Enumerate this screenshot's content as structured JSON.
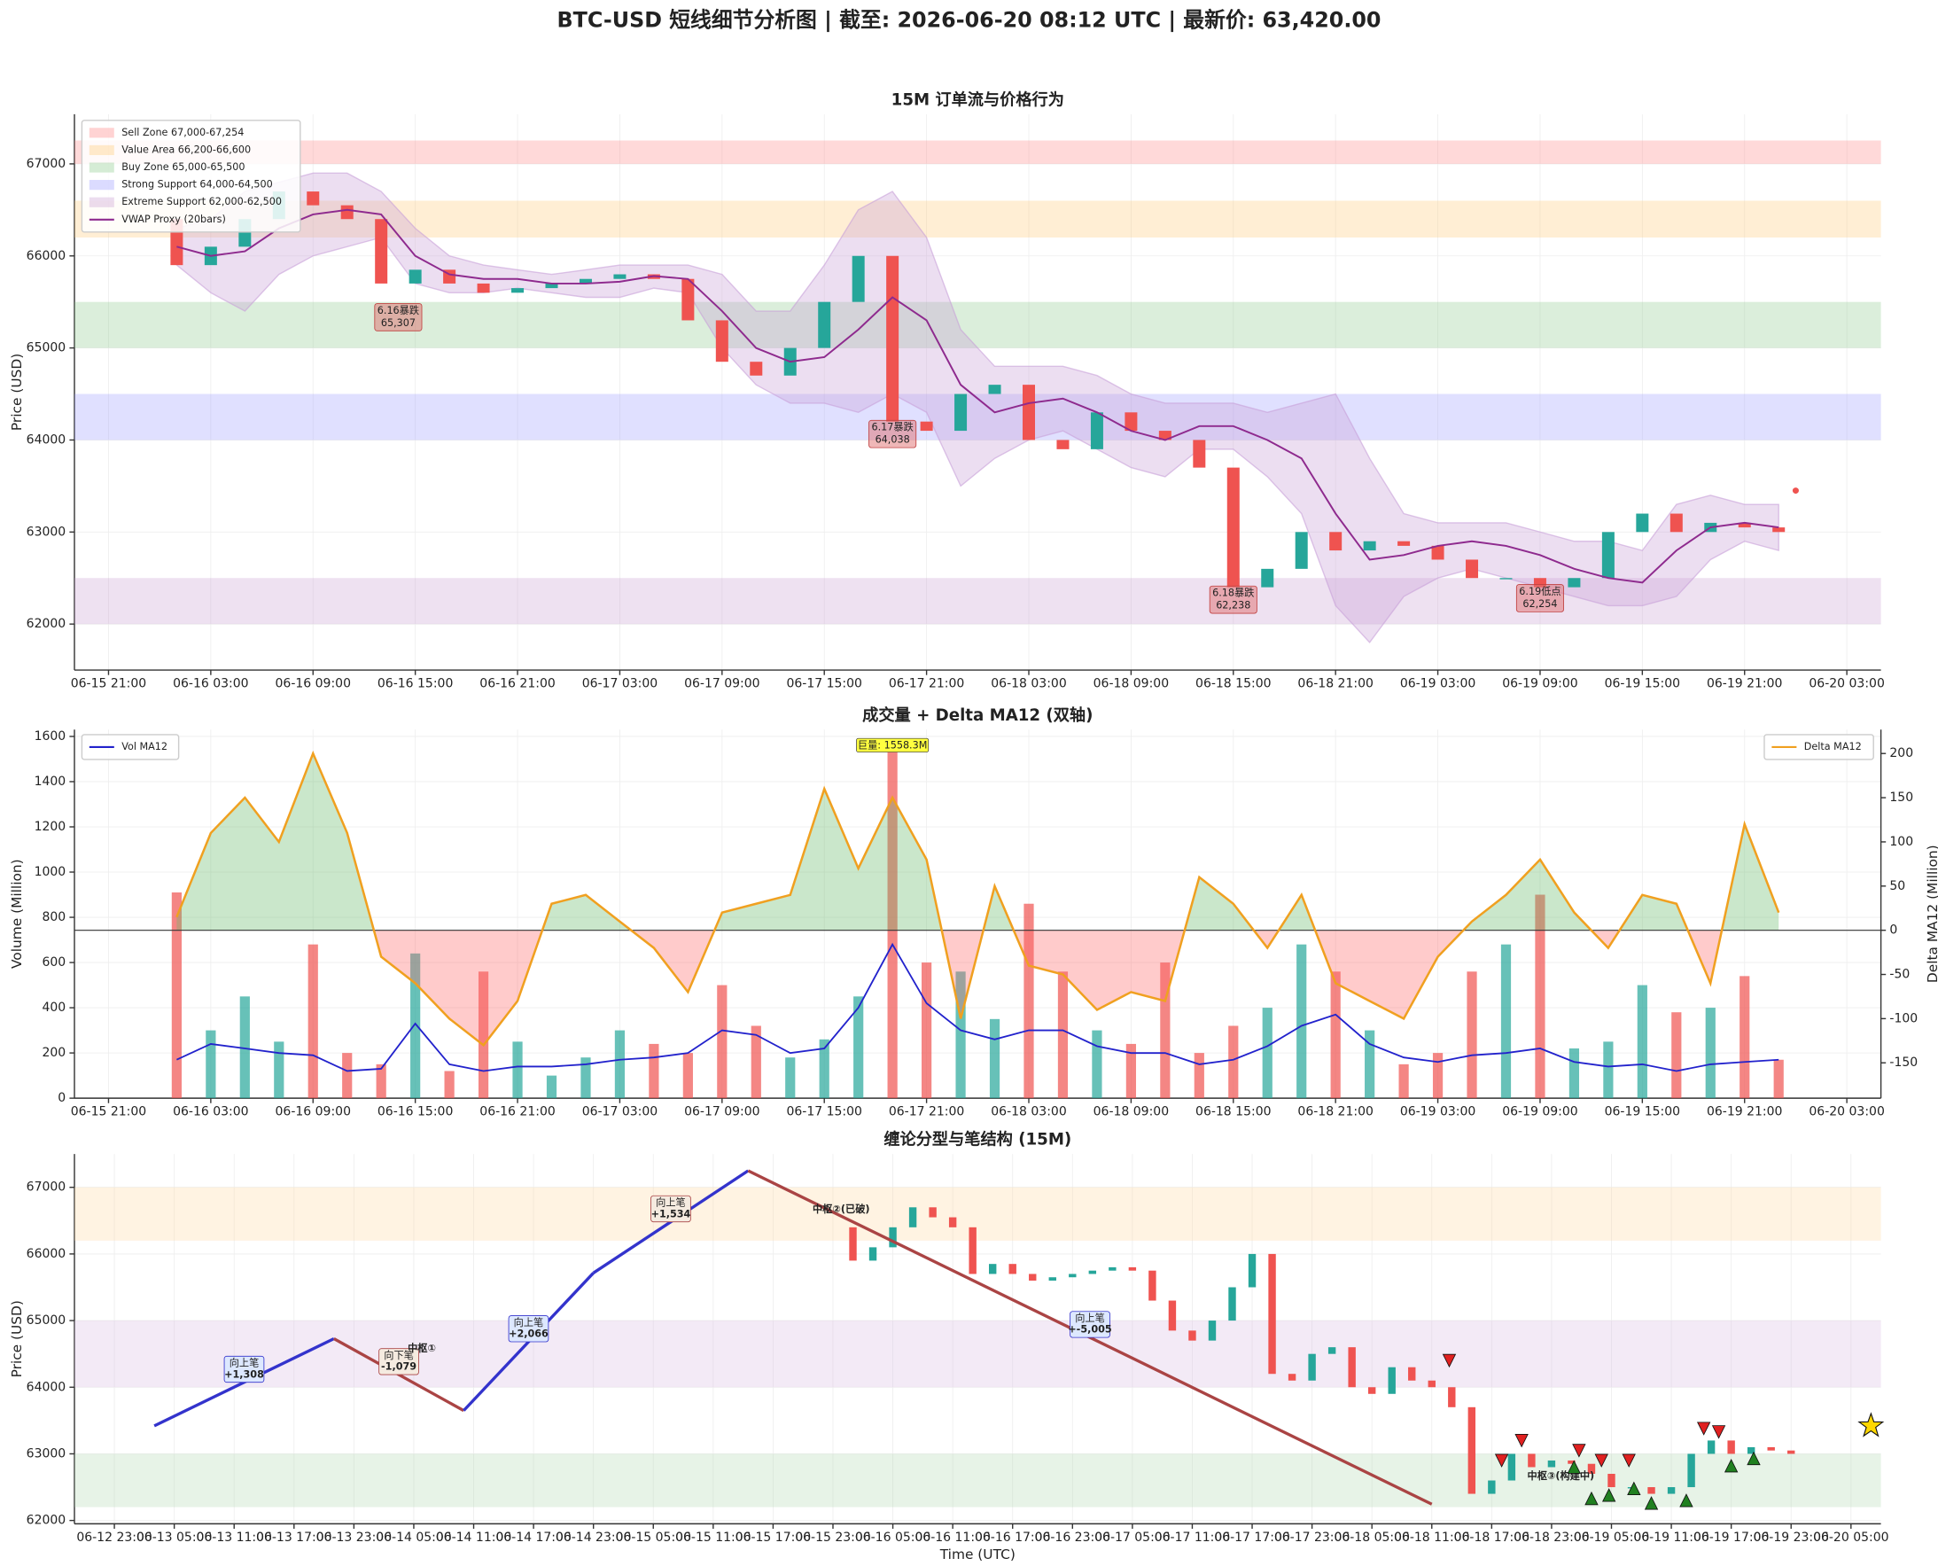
{
  "title": "BTC-USD 短线细节分析图 | 截至: 2026-06-20 08:12 UTC | 最新价: 63,420.00",
  "chart_data": [
    {
      "type": "candlestick",
      "title": "15M 订单流与价格行为",
      "ylabel": "Price (USD)",
      "x": [
        "06-16 01:00",
        "06-16 03:00",
        "06-16 05:00",
        "06-16 07:00",
        "06-16 09:00",
        "06-16 11:00",
        "06-16 13:00",
        "06-16 15:00",
        "06-16 17:00",
        "06-16 19:00",
        "06-16 21:00",
        "06-16 23:00",
        "06-17 01:00",
        "06-17 03:00",
        "06-17 05:00",
        "06-17 07:00",
        "06-17 09:00",
        "06-17 11:00",
        "06-17 13:00",
        "06-17 15:00",
        "06-17 17:00",
        "06-17 19:00",
        "06-17 21:00",
        "06-17 23:00",
        "06-18 01:00",
        "06-18 03:00",
        "06-18 05:00",
        "06-18 07:00",
        "06-18 09:00",
        "06-18 11:00",
        "06-18 13:00",
        "06-18 15:00",
        "06-18 17:00",
        "06-18 19:00",
        "06-18 21:00",
        "06-18 23:00",
        "06-19 01:00",
        "06-19 03:00",
        "06-19 05:00",
        "06-19 07:00",
        "06-19 09:00",
        "06-19 11:00",
        "06-19 13:00",
        "06-19 15:00",
        "06-19 17:00",
        "06-19 19:00",
        "06-19 21:00",
        "06-19 23:00"
      ],
      "open": [
        66400,
        65900,
        66100,
        66400,
        66700,
        66550,
        66400,
        65700,
        65850,
        65700,
        65600,
        65650,
        65700,
        65750,
        65800,
        65750,
        65300,
        64850,
        64700,
        65000,
        65500,
        66000,
        64200,
        64100,
        64500,
        64600,
        64000,
        63900,
        64300,
        64100,
        64000,
        63700,
        62400,
        62600,
        63000,
        62800,
        62900,
        62850,
        62700,
        62500,
        62500,
        62400,
        62500,
        63000,
        63200,
        63000,
        63100,
        63050
      ],
      "close": [
        65900,
        66100,
        66400,
        66700,
        66550,
        66400,
        65700,
        65850,
        65700,
        65600,
        65650,
        65700,
        65750,
        65800,
        65750,
        65300,
        64850,
        64700,
        65000,
        65500,
        66000,
        64200,
        64100,
        64500,
        64600,
        64000,
        63900,
        64300,
        64100,
        64000,
        63700,
        62400,
        62600,
        63000,
        62800,
        62900,
        62850,
        62700,
        62500,
        62500,
        62400,
        62500,
        63000,
        63200,
        63000,
        63100,
        63050,
        63000
      ],
      "up_color": "#26a69a",
      "down_color": "#ef5350",
      "vwap": {
        "name": "VWAP Proxy (20bars)",
        "color": "#8e2a8e",
        "band_color": "#c8a0d8",
        "values": [
          66100,
          66000,
          66050,
          66300,
          66450,
          66500,
          66450,
          66000,
          65800,
          65750,
          65750,
          65700,
          65700,
          65720,
          65780,
          65750,
          65400,
          65000,
          64850,
          64900,
          65200,
          65550,
          65300,
          64600,
          64300,
          64400,
          64450,
          64300,
          64100,
          64000,
          64150,
          64150,
          64000,
          63800,
          63200,
          62700,
          62750,
          62850,
          62900,
          62850,
          62750,
          62600,
          62500,
          62450,
          62800,
          63050,
          63100,
          63050
        ],
        "band_upper": [
          66300,
          66400,
          66700,
          66800,
          66900,
          66900,
          66700,
          66300,
          66000,
          65900,
          65850,
          65800,
          65850,
          65900,
          65900,
          65900,
          65800,
          65400,
          65400,
          65900,
          66500,
          66700,
          66200,
          65200,
          64800,
          64800,
          64800,
          64700,
          64500,
          64400,
          64400,
          64400,
          64300,
          64400,
          64500,
          63800,
          63200,
          63100,
          63100,
          63100,
          63000,
          62900,
          62900,
          62800,
          63300,
          63400,
          63300,
          63300
        ],
        "band_lower": [
          65900,
          65600,
          65400,
          65800,
          66000,
          66100,
          66200,
          65700,
          65600,
          65600,
          65650,
          65600,
          65550,
          65550,
          65650,
          65600,
          65000,
          64600,
          64400,
          64400,
          64300,
          64500,
          64300,
          63500,
          63800,
          64000,
          64100,
          63900,
          63700,
          63600,
          63900,
          63900,
          63600,
          63200,
          62200,
          61800,
          62300,
          62500,
          62600,
          62500,
          62400,
          62300,
          62200,
          62200,
          62300,
          62700,
          62900,
          62800
        ]
      },
      "zones": [
        {
          "name": "Sell Zone 67,000-67,254",
          "ymin": 67000,
          "ymax": 67254,
          "color": "#ff8080"
        },
        {
          "name": "Value Area 66,200-66,600",
          "ymin": 66200,
          "ymax": 66600,
          "color": "#ffc870"
        },
        {
          "name": "Buy Zone 65,000-65,500",
          "ymin": 65000,
          "ymax": 65500,
          "color": "#88c888"
        },
        {
          "name": "Strong Support 64,000-64,500",
          "ymin": 64000,
          "ymax": 64500,
          "color": "#9999ff"
        },
        {
          "name": "Extreme Support 62,000-62,500",
          "ymin": 62000,
          "ymax": 62500,
          "color": "#c89ad0"
        }
      ],
      "annotations": [
        {
          "x": "06-16 14:00",
          "value": 65307,
          "label": "6.16暴跌",
          "value_label": "65,307"
        },
        {
          "x": "06-17 19:00",
          "value": 64038,
          "label": "6.17暴跌",
          "value_label": "64,038"
        },
        {
          "x": "06-18 15:00",
          "value": 62238,
          "label": "6.18暴跌",
          "value_label": "62,238"
        },
        {
          "x": "06-19 09:00",
          "value": 62254,
          "label": "6.19低点",
          "value_label": "62,254"
        }
      ],
      "last_point": {
        "x": "06-20 00:00",
        "value": 63450,
        "color": "#ef5350"
      },
      "xlim": [
        "06-15 19:00",
        "06-20 05:00"
      ],
      "xticks": [
        "06-15 21:00",
        "06-16 03:00",
        "06-16 09:00",
        "06-16 15:00",
        "06-16 21:00",
        "06-17 03:00",
        "06-17 09:00",
        "06-17 15:00",
        "06-17 21:00",
        "06-18 03:00",
        "06-18 09:00",
        "06-18 15:00",
        "06-18 21:00",
        "06-19 03:00",
        "06-19 09:00",
        "06-19 15:00",
        "06-19 21:00",
        "06-20 03:00"
      ],
      "ylim": [
        61500,
        67540
      ],
      "yticks": [
        62000,
        63000,
        64000,
        65000,
        66000,
        67000
      ],
      "grid": true,
      "legend": "upper left"
    },
    {
      "type": "bar",
      "title": "成交量 + Delta MA12 (双轴)",
      "ylabel": "Volume (Million)",
      "y2label": "Delta MA12 (Million)",
      "values": [
        910,
        300,
        450,
        250,
        680,
        200,
        150,
        640,
        120,
        560,
        250,
        100,
        180,
        300,
        240,
        200,
        500,
        320,
        180,
        260,
        450,
        1558.3,
        600,
        560,
        350,
        860,
        560,
        300,
        240,
        600,
        200,
        320,
        400,
        680,
        560,
        300,
        150,
        200,
        560,
        680,
        900,
        220,
        250,
        500,
        380,
        400,
        540,
        170
      ],
      "series": [
        {
          "name": "Vol MA12",
          "color": "#2222cc",
          "values": [
            170,
            240,
            220,
            200,
            190,
            120,
            130,
            330,
            150,
            120,
            140,
            140,
            150,
            170,
            180,
            200,
            300,
            280,
            200,
            220,
            400,
            680,
            420,
            300,
            260,
            300,
            300,
            230,
            200,
            200,
            150,
            170,
            230,
            320,
            370,
            240,
            180,
            160,
            190,
            200,
            220,
            160,
            140,
            150,
            120,
            150,
            160,
            170
          ]
        },
        {
          "name": "Delta MA12",
          "color": "#f0a020",
          "axis": "y2",
          "pos_color": "#66bb6a",
          "neg_color": "#ff6b6b",
          "values": [
            15,
            110,
            150,
            100,
            200,
            110,
            -30,
            -60,
            -100,
            -130,
            -80,
            30,
            40,
            10,
            -20,
            -70,
            20,
            30,
            40,
            160,
            70,
            150,
            80,
            -100,
            50,
            -40,
            -50,
            -90,
            -70,
            -80,
            60,
            30,
            -20,
            40,
            -60,
            -80,
            -100,
            -30,
            10,
            40,
            80,
            20,
            -20,
            40,
            30,
            -60,
            120,
            20
          ]
        }
      ],
      "annotation": {
        "x": "06-17 19:00",
        "value": 1558.3,
        "label": "巨量: 1558.3M",
        "color": "#ffff40"
      },
      "xlim": [
        "06-15 19:00",
        "06-20 05:00"
      ],
      "xticks": [
        "06-15 21:00",
        "06-16 03:00",
        "06-16 09:00",
        "06-16 15:00",
        "06-16 21:00",
        "06-17 03:00",
        "06-17 09:00",
        "06-17 15:00",
        "06-17 21:00",
        "06-18 03:00",
        "06-18 09:00",
        "06-18 15:00",
        "06-18 21:00",
        "06-19 03:00",
        "06-19 09:00",
        "06-19 15:00",
        "06-19 21:00",
        "06-20 03:00"
      ],
      "ylim": [
        0,
        1630
      ],
      "yticks": [
        0,
        200,
        400,
        600,
        800,
        1000,
        1200,
        1400,
        1600
      ],
      "y2lim": [
        -190,
        227
      ],
      "y2ticks": [
        -150,
        -100,
        -50,
        0,
        50,
        100,
        150,
        200
      ],
      "grid": true,
      "legend": "upper left",
      "legend2": "upper right"
    },
    {
      "type": "chan",
      "title": "缠论分型与笔结构 (15M)",
      "ylabel": "Price (USD)",
      "xlabel": "Time (UTC)",
      "strokes": {
        "x": [
          "06-13 03:00",
          "06-13 21:00",
          "06-14 10:00",
          "06-14 23:00",
          "06-15 14:30",
          "06-18 11:00"
        ],
        "values": [
          63420,
          64728,
          63649,
          65715,
          67249,
          62244
        ],
        "up_color": "#3333cc",
        "down_color": "#aa4444",
        "labels": [
          {
            "text": "向上笔",
            "value_label": "+1,308"
          },
          {
            "text": "向下笔",
            "value_label": "-1,079"
          },
          {
            "text": "向上笔",
            "value_label": "+2,066"
          },
          {
            "text": "向上笔",
            "value_label": "+1,534"
          },
          {
            "text": "向上笔",
            "value_label": "+-5,005"
          }
        ]
      },
      "zones": [
        {
          "name": "中枢①",
          "ymin": 64000,
          "ymax": 65000,
          "color": "#d8b8e0",
          "label_color": "#800080"
        },
        {
          "name": "中枢②(已破)",
          "ymin": 66200,
          "ymax": 67000,
          "color": "#ffd8a0",
          "label_color": "#f0a020"
        },
        {
          "name": "中枢③(构建中)",
          "ymin": 62200,
          "ymax": 63000,
          "color": "#b0d8b0",
          "label_color": "#208020"
        }
      ],
      "tops": {
        "color": "#e02020",
        "x": [
          "06-18 12:45",
          "06-18 18:00",
          "06-18 20:00",
          "06-19 01:45",
          "06-19 04:00",
          "06-19 06:45",
          "06-19 14:15",
          "06-19 15:45"
        ],
        "values": [
          64400,
          62900,
          63200,
          63050,
          62900,
          62900,
          63380,
          63330
        ]
      },
      "bottoms": {
        "color": "#208020",
        "x": [
          "06-19 01:15",
          "06-19 03:00",
          "06-19 04:45",
          "06-19 07:15",
          "06-19 09:00",
          "06-19 12:30",
          "06-19 17:00",
          "06-19 19:15"
        ],
        "values": [
          62800,
          62330,
          62380,
          62480,
          62260,
          62300,
          62820,
          62930
        ]
      },
      "current": {
        "x": "06-20 07:00",
        "value": 63420,
        "color": "#ffd700"
      },
      "xlim": [
        "06-12 19:00",
        "06-20 08:00"
      ],
      "xticks": [
        "06-12 23:00",
        "06-13 05:00",
        "06-13 11:00",
        "06-13 17:00",
        "06-13 23:00",
        "06-14 05:00",
        "06-14 11:00",
        "06-14 17:00",
        "06-14 23:00",
        "06-15 05:00",
        "06-15 11:00",
        "06-15 17:00",
        "06-15 23:00",
        "06-16 05:00",
        "06-16 11:00",
        "06-16 17:00",
        "06-16 23:00",
        "06-17 05:00",
        "06-17 11:00",
        "06-17 17:00",
        "06-17 23:00",
        "06-18 05:00",
        "06-18 11:00",
        "06-18 17:00",
        "06-18 23:00",
        "06-19 05:00",
        "06-19 11:00",
        "06-19 17:00",
        "06-19 23:00",
        "06-20 05:00"
      ],
      "ylim": [
        61950,
        67500
      ],
      "yticks": [
        62000,
        63000,
        64000,
        65000,
        66000,
        67000
      ],
      "grid": true
    }
  ]
}
